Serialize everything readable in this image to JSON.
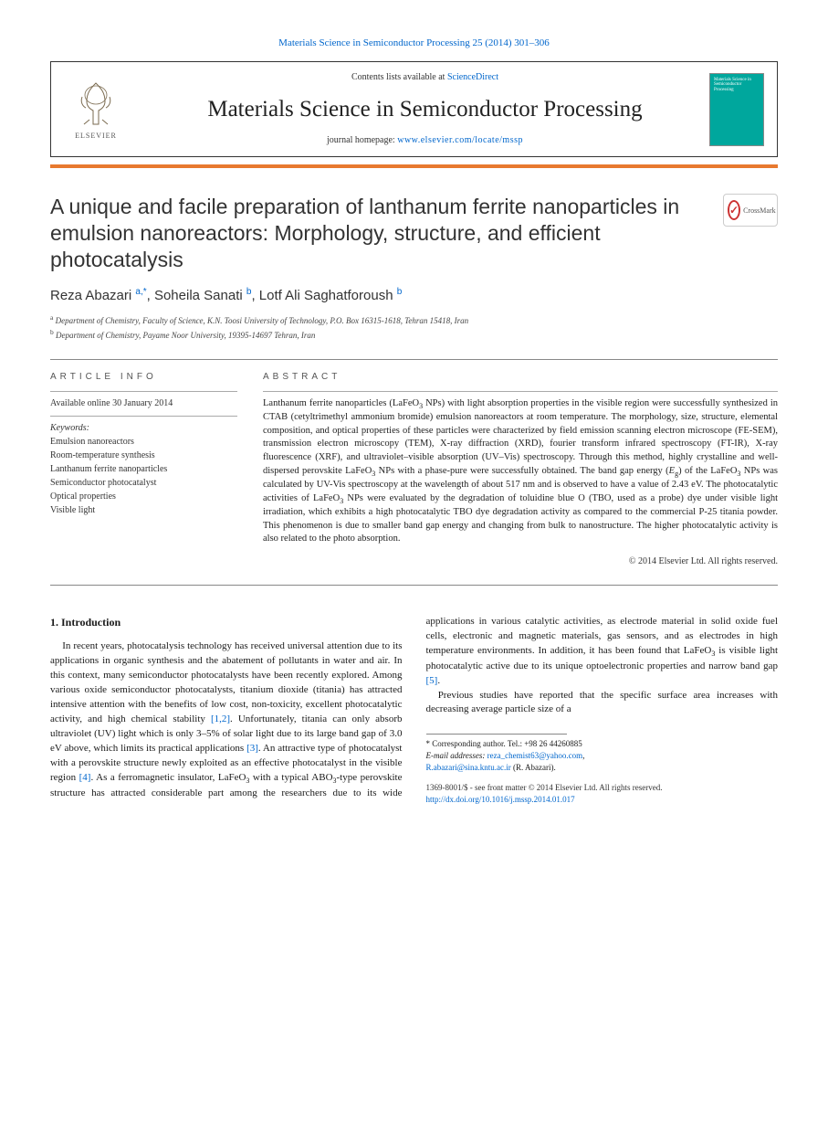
{
  "journal": {
    "citation": "Materials Science in Semiconductor Processing 25 (2014) 301–306",
    "contents_prefix": "Contents lists available at ",
    "contents_link": "ScienceDirect",
    "name": "Materials Science in Semiconductor Processing",
    "homepage_prefix": "journal homepage: ",
    "homepage_url": "www.elsevier.com/locate/mssp",
    "publisher_logo_text": "ELSEVIER",
    "cover_text": "Materials Science in Semiconductor Processing"
  },
  "crossmark": {
    "label": "CrossMark"
  },
  "article": {
    "title": "A unique and facile preparation of lanthanum ferrite nanoparticles in emulsion nanoreactors: Morphology, structure, and efficient photocatalysis",
    "authors_html": "Reza Abazari <sup>a,*</sup>, Soheila Sanati <sup>b</sup>, Lotf Ali Saghatforoush <sup>b</sup>",
    "affiliations": [
      {
        "sup": "a",
        "text": "Department of Chemistry, Faculty of Science, K.N. Toosi University of Technology, P.O. Box 16315-1618, Tehran 15418, Iran"
      },
      {
        "sup": "b",
        "text": "Department of Chemistry, Payame Noor University, 19395-14697 Tehran, Iran"
      }
    ]
  },
  "info": {
    "article_info_heading": "ARTICLE INFO",
    "abstract_heading": "ABSTRACT",
    "available_online": "Available online 30 January 2014",
    "keywords_label": "Keywords:",
    "keywords": [
      "Emulsion nanoreactors",
      "Room-temperature synthesis",
      "Lanthanum ferrite nanoparticles",
      "Semiconductor photocatalyst",
      "Optical properties",
      "Visible light"
    ]
  },
  "abstract": {
    "text_html": "Lanthanum ferrite nanoparticles (LaFeO<sub>3</sub> NPs) with light absorption properties in the visible region were successfully synthesized in CTAB (cetyltrimethyl ammonium bromide) emulsion nanoreactors at room temperature. The morphology, size, structure, elemental composition, and optical properties of these particles were characterized by field emission scanning electron microscope (FE-SEM), transmission electron microscopy (TEM), X-ray diffraction (XRD), fourier transform infrared spectroscopy (FT-IR), X-ray fluorescence (XRF), and ultraviolet–visible absorption (UV–Vis) spectroscopy. Through this method, highly crystalline and well-dispersed perovskite LaFeO<sub>3</sub> NPs with a phase-pure were successfully obtained. The band gap energy (<i>E</i><sub>g</sub>) of the LaFeO<sub>3</sub> NPs was calculated by UV-Vis spectroscopy at the wavelength of about 517 nm and is observed to have a value of 2.43 eV. The photocatalytic activities of LaFeO<sub>3</sub> NPs were evaluated by the degradation of toluidine blue O (TBO, used as a probe) dye under visible light irradiation, which exhibits a high photocatalytic TBO dye degradation activity as compared to the commercial P-25 titania powder. This phenomenon is due to smaller band gap energy and changing from bulk to nanostructure. The higher photocatalytic activity is also related to the photo absorption.",
    "copyright": "© 2014 Elsevier Ltd. All rights reserved."
  },
  "body": {
    "section_heading": "1.  Introduction",
    "para1_html": "In recent years, photocatalysis technology has received universal attention due to its applications in organic synthesis and the abatement of pollutants in water and air. In this context, many semiconductor photocatalysts have been recently explored. Among various oxide semiconductor photocatalysts, titanium dioxide (titania) has attracted intensive attention with the benefits of low cost, non-toxicity, excellent photocatalytic activity, and high chemical stability <a href='#'>[1,2]</a>. Unfortunately, titania can only absorb ultraviolet (UV) light which is only 3–5% of solar light due to its large band gap of 3.0 eV above, which limits its practical applications <a href='#'>[3]</a>. An attractive type of photocatalyst with a perovskite structure newly exploited as an effective photocatalyst in the visible region <a href='#'>[4]</a>. As a ferromagnetic insulator, LaFeO<sub>3</sub> with a typical ABO<sub>3</sub>-type perovskite structure has attracted considerable part among the researchers due to its wide applications in various catalytic activities, as electrode material in solid oxide fuel cells, electronic and magnetic materials, gas sensors, and as electrodes in high temperature environments. In addition, it has been found that LaFeO<sub>3</sub> is visible light photocatalytic active due to its unique optoelectronic properties and narrow band gap <a href='#'>[5]</a>.",
    "para2_html": "Previous studies have reported that the specific surface area increases with decreasing average particle size of a"
  },
  "footnotes": {
    "corr_label": "* Corresponding author. Tel.: ",
    "corr_tel": "+98 26 44260885",
    "email_label": "E-mail addresses: ",
    "email1": "reza_chemist63@yahoo.com",
    "email2": "R.abazari@sina.kntu.ac.ir",
    "email_name": " (R. Abazari).",
    "issn_line": "1369-8001/$ - see front matter © 2014 Elsevier Ltd. All rights reserved.",
    "doi": "http://dx.doi.org/10.1016/j.mssp.2014.01.017"
  },
  "colors": {
    "link": "#0066cc",
    "orange_bar": "#e8792f",
    "cover_bg": "#00a79d",
    "crossmark_ring": "#c33"
  }
}
